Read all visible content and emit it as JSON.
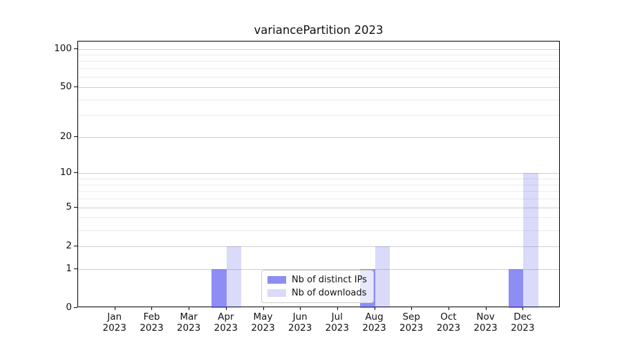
{
  "chart_data": {
    "type": "bar",
    "title": "variancePartition 2023",
    "categories": [
      "Jan",
      "Feb",
      "Mar",
      "Apr",
      "May",
      "Jun",
      "Jul",
      "Aug",
      "Sep",
      "Oct",
      "Nov",
      "Dec"
    ],
    "category_year": "2023",
    "series": [
      {
        "name": "Nb of distinct IPs",
        "color": "rgba(85,85,238,0.67)",
        "values": [
          0,
          0,
          0,
          1,
          0,
          0,
          0,
          1,
          0,
          0,
          0,
          1
        ]
      },
      {
        "name": "Nb of downloads",
        "color": "rgba(85,85,238,0.22)",
        "values": [
          0,
          0,
          0,
          2,
          0,
          0,
          0,
          2,
          0,
          0,
          0,
          10
        ]
      }
    ],
    "xlabel": "",
    "ylabel": "",
    "yscale": "log1p",
    "ylim": [
      0,
      114
    ],
    "y_major_ticks": [
      0,
      1,
      2,
      5,
      10,
      20,
      50,
      100
    ],
    "y_minor_ticks": [
      3,
      4,
      6,
      7,
      8,
      9,
      30,
      40,
      60,
      70,
      80,
      90
    ],
    "grid": "horizontal, major+minor",
    "legend_position": "lower center"
  },
  "colors": {
    "bar_dark": "rgba(85,85,238,0.67)",
    "bar_light": "rgba(85,85,238,0.22)",
    "grid_major": "#cfcfcf",
    "grid_minor": "#ebebeb",
    "axis_frame": "#000000",
    "legend_border": "#cccccc",
    "text": "#111111"
  }
}
